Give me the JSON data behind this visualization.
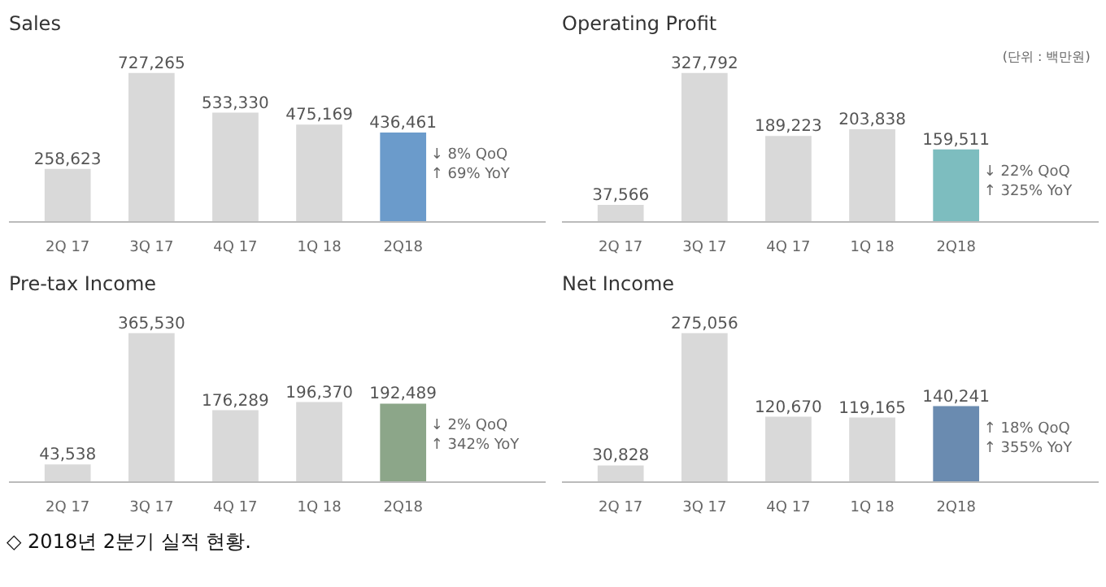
{
  "chart_data": [
    {
      "type": "bar",
      "title": "Sales",
      "categories": [
        "2Q 17",
        "3Q 17",
        "4Q 17",
        "1Q 18",
        "2Q18"
      ],
      "values": [
        258623,
        727265,
        533330,
        475169,
        436461
      ],
      "colors": [
        "#d9d9d9",
        "#d9d9d9",
        "#d9d9d9",
        "#d9d9d9",
        "#6b9bcb"
      ],
      "value_labels": [
        "258,623",
        "727,265",
        "533,330",
        "475,169",
        "436,461"
      ],
      "grid": false,
      "annotations": [
        "↓ 8% QoQ",
        "↑ 69% YoY"
      ]
    },
    {
      "type": "bar",
      "title": "Operating Profit",
      "subtitle": "(단위 : 백만원)",
      "categories": [
        "2Q 17",
        "3Q 17",
        "4Q 17",
        "1Q 18",
        "2Q18"
      ],
      "values": [
        37566,
        327792,
        189223,
        203838,
        159511
      ],
      "colors": [
        "#d9d9d9",
        "#d9d9d9",
        "#d9d9d9",
        "#d9d9d9",
        "#7dbdbf"
      ],
      "value_labels": [
        "37,566",
        "327,792",
        "189,223",
        "203,838",
        "159,511"
      ],
      "grid": false,
      "annotations": [
        "↓ 22% QoQ",
        "↑ 325% YoY"
      ]
    },
    {
      "type": "bar",
      "title": "Pre-tax Income",
      "categories": [
        "2Q 17",
        "3Q 17",
        "4Q 17",
        "1Q 18",
        "2Q18"
      ],
      "values": [
        43538,
        365530,
        176289,
        196370,
        192489
      ],
      "colors": [
        "#d9d9d9",
        "#d9d9d9",
        "#d9d9d9",
        "#d9d9d9",
        "#8ca689"
      ],
      "value_labels": [
        "43,538",
        "365,530",
        "176,289",
        "196,370",
        "192,489"
      ],
      "grid": false,
      "annotations": [
        "↓ 2% QoQ",
        "↑ 342% YoY"
      ]
    },
    {
      "type": "bar",
      "title": "Net Income",
      "categories": [
        "2Q 17",
        "3Q 17",
        "4Q 17",
        "1Q 18",
        "2Q18"
      ],
      "values": [
        30828,
        275056,
        120670,
        119165,
        140241
      ],
      "colors": [
        "#d9d9d9",
        "#d9d9d9",
        "#d9d9d9",
        "#d9d9d9",
        "#6a8bb0"
      ],
      "value_labels": [
        "30,828",
        "275,056",
        "120,670",
        "119,165",
        "140,241"
      ],
      "grid": false,
      "annotations": [
        "↑ 18% QoQ",
        "↑ 355% YoY"
      ]
    },
    {
      "type": "other",
      "annotations": [
        "◇ 2018년 2분기 실적 현황."
      ]
    }
  ]
}
